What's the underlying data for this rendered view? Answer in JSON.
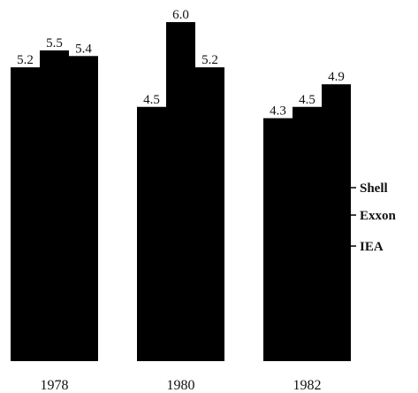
{
  "chart_data": {
    "type": "bar",
    "categories": [
      "1978",
      "1980",
      "1982"
    ],
    "series": [
      {
        "name": "Shell",
        "color": "#000000",
        "values": [
          5.2,
          4.5,
          4.3
        ]
      },
      {
        "name": "Exxon",
        "color": "#000000",
        "values": [
          5.5,
          6.0,
          4.5
        ]
      },
      {
        "name": "IEA",
        "color": "#000000",
        "values": [
          5.4,
          5.2,
          4.9
        ]
      }
    ],
    "value_labels": [
      [
        "5.2",
        "4.5",
        "4.3"
      ],
      [
        "5.5",
        "6.0",
        "4.5"
      ],
      [
        "5.4",
        "5.2",
        "4.9"
      ]
    ],
    "legend": "right"
  }
}
